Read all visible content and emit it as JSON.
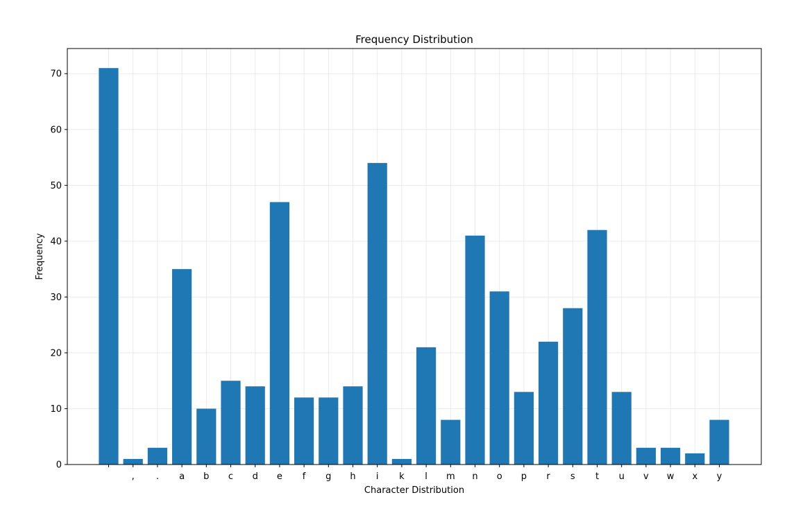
{
  "chart_data": {
    "type": "bar",
    "title": "Frequency Distribution",
    "xlabel": "Character Distribution",
    "ylabel": "Frequency",
    "categories": [
      " ",
      ",",
      ".",
      "a",
      "b",
      "c",
      "d",
      "e",
      "f",
      "g",
      "h",
      "i",
      "k",
      "l",
      "m",
      "n",
      "o",
      "p",
      "r",
      "s",
      "t",
      "u",
      "v",
      "w",
      "x",
      "y"
    ],
    "values": [
      71,
      1,
      3,
      35,
      10,
      15,
      14,
      47,
      12,
      12,
      14,
      54,
      1,
      21,
      8,
      41,
      31,
      13,
      22,
      28,
      42,
      13,
      3,
      3,
      2,
      8
    ],
    "ylim": [
      0,
      74.5
    ],
    "yticks": [
      0,
      10,
      20,
      30,
      40,
      50,
      60,
      70
    ],
    "grid": true,
    "bar_color": "#1f77b4"
  }
}
